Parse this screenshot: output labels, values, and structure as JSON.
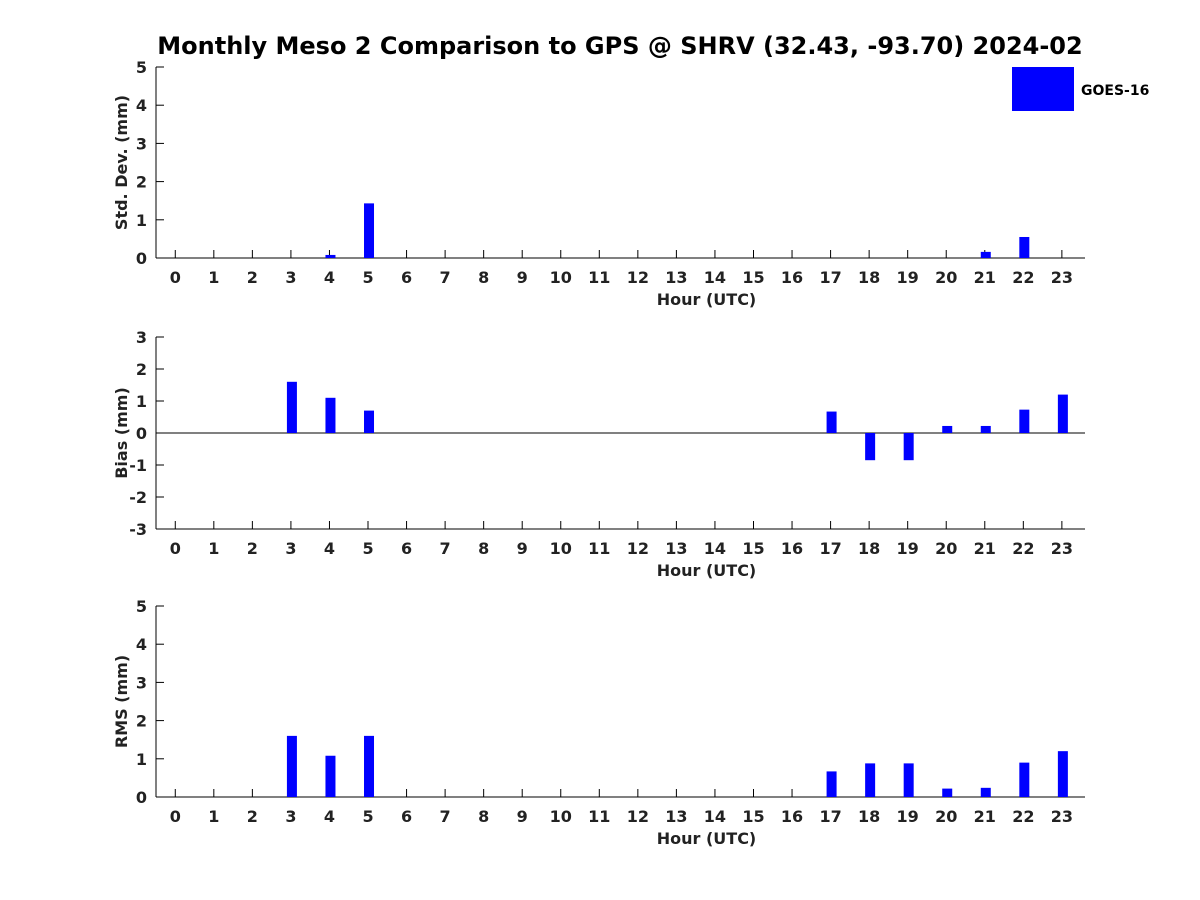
{
  "chart_data": {
    "type": "bar",
    "title": "Monthly Meso 2 Comparison to GPS @ SHRV (32.43, -93.70) 2024-02",
    "legend": {
      "placement": "top-right",
      "entries": [
        {
          "name": "GOES-16",
          "color": "#0000ff"
        }
      ]
    },
    "bar_color": "#0000ff",
    "categories": [
      "0",
      "1",
      "2",
      "3",
      "4",
      "5",
      "6",
      "7",
      "8",
      "9",
      "10",
      "11",
      "12",
      "13",
      "14",
      "15",
      "16",
      "17",
      "18",
      "19",
      "20",
      "21",
      "22",
      "23"
    ],
    "panels": [
      {
        "ylabel": "Std. Dev. (mm)",
        "xlabel": "Hour (UTC)",
        "ylim": [
          0,
          5
        ],
        "yticks": [
          0,
          1,
          2,
          3,
          4,
          5
        ],
        "zero_line": false,
        "series": [
          {
            "name": "GOES-16",
            "values": [
              null,
              null,
              null,
              null,
              0.08,
              1.43,
              null,
              null,
              null,
              null,
              null,
              null,
              null,
              null,
              null,
              null,
              null,
              null,
              null,
              null,
              null,
              0.16,
              0.55,
              null
            ]
          }
        ]
      },
      {
        "ylabel": "Bias (mm)",
        "xlabel": "Hour (UTC)",
        "ylim": [
          -3,
          3
        ],
        "yticks": [
          -3,
          -2,
          -1,
          0,
          1,
          2,
          3
        ],
        "zero_line": true,
        "series": [
          {
            "name": "GOES-16",
            "values": [
              null,
              null,
              null,
              1.6,
              1.1,
              0.7,
              null,
              null,
              null,
              null,
              null,
              null,
              null,
              null,
              null,
              null,
              null,
              0.67,
              -0.85,
              -0.85,
              0.22,
              0.22,
              0.73,
              1.2
            ]
          }
        ]
      },
      {
        "ylabel": "RMS (mm)",
        "xlabel": "Hour (UTC)",
        "ylim": [
          0,
          5
        ],
        "yticks": [
          0,
          1,
          2,
          3,
          4,
          5
        ],
        "zero_line": false,
        "series": [
          {
            "name": "GOES-16",
            "values": [
              null,
              null,
              null,
              1.6,
              1.08,
              1.6,
              null,
              null,
              null,
              null,
              null,
              null,
              null,
              null,
              null,
              null,
              null,
              0.67,
              0.88,
              0.88,
              0.22,
              0.24,
              0.9,
              1.2
            ]
          }
        ]
      }
    ]
  }
}
